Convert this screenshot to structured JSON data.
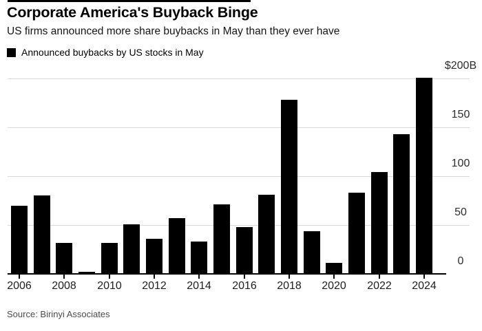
{
  "header": {
    "title": "Corporate America's Buyback Binge",
    "subtitle": "US firms announced more share buybacks in May than they ever have"
  },
  "legend": {
    "label": "Announced buybacks by US stocks in May",
    "marker_color": "#000000"
  },
  "source": "Source: Birinyi Associates",
  "colors": {
    "bar": "#000000",
    "gridline": "#d8d8d8",
    "axis": "#000000",
    "background": "#ffffff"
  },
  "chart_data": {
    "type": "bar",
    "title": "Corporate America's Buyback Binge",
    "subtitle": "US firms announced more share buybacks in May than they ever have",
    "series_label": "Announced buybacks by US stocks in May",
    "unit": "billions of US dollars",
    "categories": [
      2006,
      2007,
      2008,
      2009,
      2010,
      2011,
      2012,
      2013,
      2014,
      2015,
      2016,
      2017,
      2018,
      2019,
      2020,
      2021,
      2022,
      2023,
      2024
    ],
    "values": [
      70,
      80,
      32,
      2,
      32,
      51,
      36,
      57,
      33,
      71,
      48,
      81,
      178,
      44,
      11,
      83,
      104,
      143,
      201
    ],
    "xlabel": "",
    "ylabel": "",
    "ylim": [
      0,
      200
    ],
    "y_ticks": [
      200,
      150,
      100,
      50,
      0
    ],
    "y_tick_labels": [
      "$200B",
      "150",
      "100",
      "50",
      "0"
    ],
    "x_tick_labels": [
      "2006",
      "2008",
      "2010",
      "2012",
      "2014",
      "2016",
      "2018",
      "2020",
      "2022",
      "2024"
    ],
    "grid": "horizontal",
    "legend_position": "top-left",
    "axis_label_side": "right",
    "bar_color": "#000000",
    "source": "Source: Birinyi Associates"
  }
}
